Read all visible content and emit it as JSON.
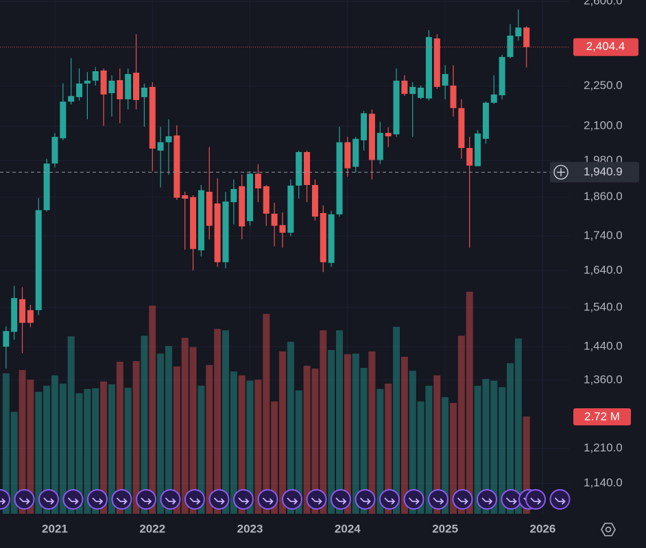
{
  "chart_data": {
    "type": "candlestick",
    "log_scale": true,
    "grid": true,
    "up_color": "#26a69a",
    "down_color": "#ef5350",
    "x": [
      2020.5,
      2020.5833,
      2020.6667,
      2020.75,
      2020.8333,
      2020.9167,
      2021.0,
      2021.0833,
      2021.1667,
      2021.25,
      2021.3333,
      2021.4167,
      2021.5,
      2021.5833,
      2021.6667,
      2021.75,
      2021.8333,
      2021.9167,
      2022.0,
      2022.0833,
      2022.1667,
      2022.25,
      2022.3333,
      2022.4167,
      2022.5,
      2022.5833,
      2022.6667,
      2022.75,
      2022.8333,
      2022.9167,
      2023.0,
      2023.0833,
      2023.1667,
      2023.25,
      2023.3333,
      2023.4167,
      2023.5,
      2023.5833,
      2023.6667,
      2023.75,
      2023.8333,
      2023.9167,
      2024.0,
      2024.0833,
      2024.1667,
      2024.25,
      2024.3333,
      2024.4167,
      2024.5,
      2024.5833,
      2024.6667,
      2024.75,
      2024.8333,
      2024.9167,
      2025.0,
      2025.0833,
      2025.1667,
      2025.25,
      2025.3333,
      2025.4167,
      2025.5,
      2025.5833,
      2025.6667,
      2025.75,
      2025.8333
    ],
    "open": [
      1440,
      1477,
      1562,
      1533,
      1533,
      1819,
      1970,
      2057,
      2190,
      2207,
      2259,
      2270,
      2310,
      2222,
      2272,
      2199,
      2301,
      2207,
      2246,
      2014,
      2043,
      2067,
      1866,
      1860,
      1698,
      1877,
      1840,
      1664,
      1844,
      1895,
      1785,
      1936,
      1895,
      1808,
      1773,
      1750,
      1897,
      2009,
      1899,
      1810,
      1662,
      1806,
      2043,
      1959,
      2050,
      2145,
      1982,
      2076,
      2071,
      2270,
      2219,
      2204,
      2202,
      2440,
      2251,
      2251,
      2166,
      2023,
      1961,
      2055,
      2186,
      2214,
      2364,
      2449,
      2486
    ],
    "high": [
      1491,
      1598,
      1594,
      1547,
      1857,
      1986,
      2075,
      2260,
      2360,
      2318,
      2304,
      2323,
      2318,
      2291,
      2318,
      2318,
      2458,
      2259,
      2264,
      2098,
      2125,
      2103,
      1877,
      1866,
      1899,
      2026,
      1921,
      1877,
      1917,
      1933,
      1944,
      1968,
      1899,
      1842,
      1812,
      1917,
      2014,
      2014,
      1917,
      1834,
      1817,
      2098,
      2062,
      2062,
      2156,
      2161,
      2116,
      2096,
      2318,
      2291,
      2264,
      2251,
      2475,
      2458,
      2331,
      2331,
      2199,
      2062,
      2086,
      2191,
      2291,
      2373,
      2501,
      2564,
      2492
    ],
    "low": [
      1387,
      1457,
      1424,
      1489,
      1520,
      1815,
      1957,
      2050,
      2180,
      2194,
      2125,
      2251,
      2101,
      2135,
      2111,
      2161,
      2161,
      2098,
      1944,
      1891,
      1933,
      1851,
      1700,
      1641,
      1680,
      1730,
      1651,
      1647,
      1775,
      1730,
      1771,
      1844,
      1771,
      1710,
      1706,
      1740,
      1855,
      1844,
      1787,
      1636,
      1651,
      1799,
      1926,
      1940,
      2014,
      1917,
      1968,
      2026,
      2062,
      2212,
      2062,
      2199,
      2194,
      2238,
      2199,
      2135,
      1986,
      1706,
      1961,
      2038,
      2181,
      2199,
      2359,
      2431,
      2322
    ],
    "close": [
      1479,
      1565,
      1500,
      1500,
      1819,
      1970,
      2062,
      2190,
      2211,
      2259,
      2270,
      2307,
      2217,
      2270,
      2199,
      2296,
      2196,
      2243,
      2021,
      2043,
      2064,
      1858,
      1855,
      1702,
      1882,
      1771,
      1664,
      1846,
      1886,
      1769,
      1936,
      1888,
      1808,
      1771,
      1750,
      1897,
      2009,
      1899,
      1799,
      1664,
      1806,
      2043,
      1954,
      2055,
      2147,
      1982,
      2076,
      2064,
      2270,
      2219,
      2246,
      2243,
      2446,
      2246,
      2296,
      2166,
      2023,
      1963,
      2074,
      2186,
      2217,
      2364,
      2452,
      2486,
      2404.4
    ],
    "volume": [
      3.93,
      2.85,
      4.02,
      3.75,
      3.41,
      3.58,
      3.87,
      3.64,
      4.96,
      3.37,
      3.49,
      3.51,
      3.7,
      3.62,
      4.25,
      3.52,
      4.27,
      4.98,
      5.82,
      4.48,
      4.69,
      4.12,
      4.92,
      4.66,
      3.58,
      4.16,
      5.17,
      5.13,
      3.98,
      3.87,
      3.72,
      3.75,
      5.59,
      3.14,
      4.54,
      4.81,
      3.45,
      4.14,
      4.06,
      5.13,
      4.58,
      5.13,
      4.46,
      4.48,
      4.08,
      4.54,
      3.49,
      3.64,
      5.23,
      4.39,
      4.0,
      3.14,
      3.58,
      3.87,
      3.26,
      3.1,
      4.98,
      6.21,
      3.58,
      3.77,
      3.72,
      3.54,
      4.21,
      4.9,
      2.72
    ],
    "xlim": [
      2020.438,
      2026.271
    ],
    "xticks": [
      2021,
      2022,
      2023,
      2024,
      2025,
      2026
    ],
    "ylim": [
      1082,
      2606
    ],
    "yticks": [
      {
        "value": 2600,
        "label": "2,600.0"
      },
      {
        "value": 2250,
        "label": "2,250.0"
      },
      {
        "value": 2100,
        "label": "2,100.0"
      },
      {
        "value": 1980,
        "label": "1,980.0"
      },
      {
        "value": 1860,
        "label": "1,860.0"
      },
      {
        "value": 1740,
        "label": "1,740.0"
      },
      {
        "value": 1640,
        "label": "1,640.0"
      },
      {
        "value": 1540,
        "label": "1,540.0"
      },
      {
        "value": 1440,
        "label": "1,440.0"
      },
      {
        "value": 1360,
        "label": "1,360.0"
      },
      {
        "value": 1210,
        "label": "1,210.0"
      },
      {
        "value": 1140,
        "label": "1,140.0"
      }
    ],
    "last_price": {
      "value": 2404.4,
      "label": "2,404.4"
    },
    "crosshair_price": {
      "value": 1940.9,
      "label": "1,940.9"
    },
    "volume_label": {
      "value": 2.72,
      "label": "2.72 M"
    }
  }
}
